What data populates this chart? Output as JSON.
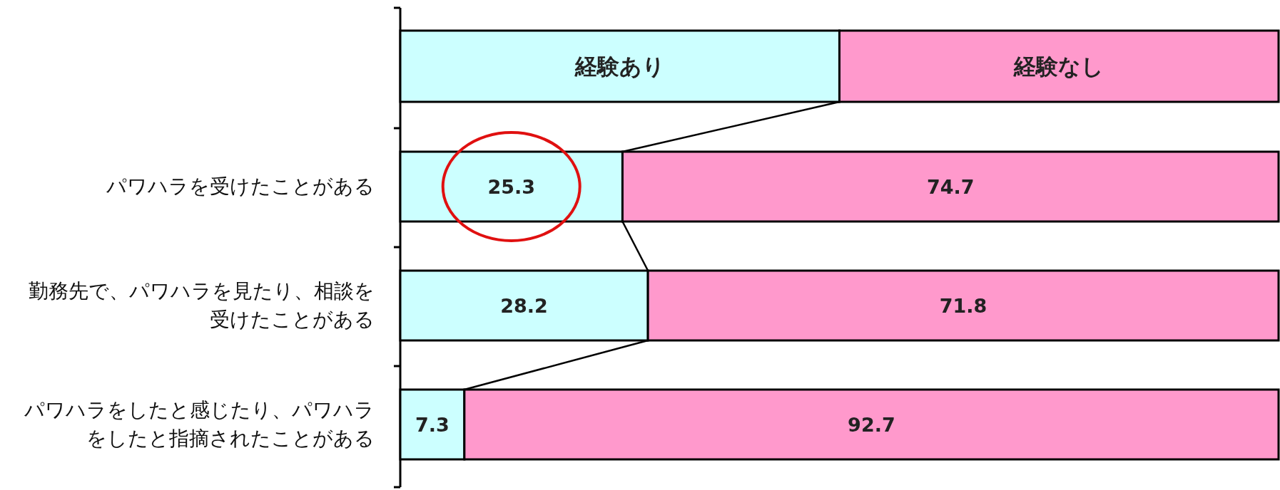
{
  "chart_data": {
    "type": "bar",
    "orientation": "horizontal",
    "stacked": true,
    "data_labels": true,
    "legend": "top",
    "categories": [
      "パワハラを受けたことがある",
      "勤務先で、パワハラを見たり、相談を受けたことがある",
      "パワハラをしたと感じたり、パワハラをしたと指摘されたことがある"
    ],
    "series": [
      {
        "name": "経験あり",
        "color": "#ccffff",
        "values": [
          25.3,
          28.2,
          7.3
        ]
      },
      {
        "name": "経験なし",
        "color": "#ff99cc",
        "values": [
          74.7,
          71.8,
          92.7
        ]
      }
    ]
  }
}
